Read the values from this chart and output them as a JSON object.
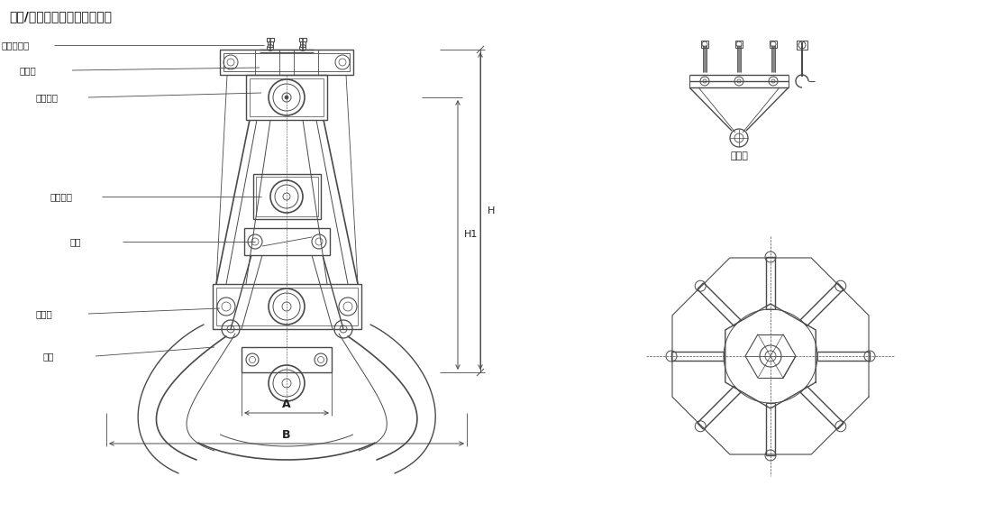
{
  "title": "四绳/双绳多瓣抓斗外形尺寸图",
  "bg_color": "#ffffff",
  "line_color": "#4a4a4a",
  "labels_left": [
    "提升平衡梁",
    "上承梁",
    "上滑轮组",
    "下滑轮组",
    "撑杆",
    "下承梁",
    "斗瓣"
  ],
  "label_top": "平衡架"
}
